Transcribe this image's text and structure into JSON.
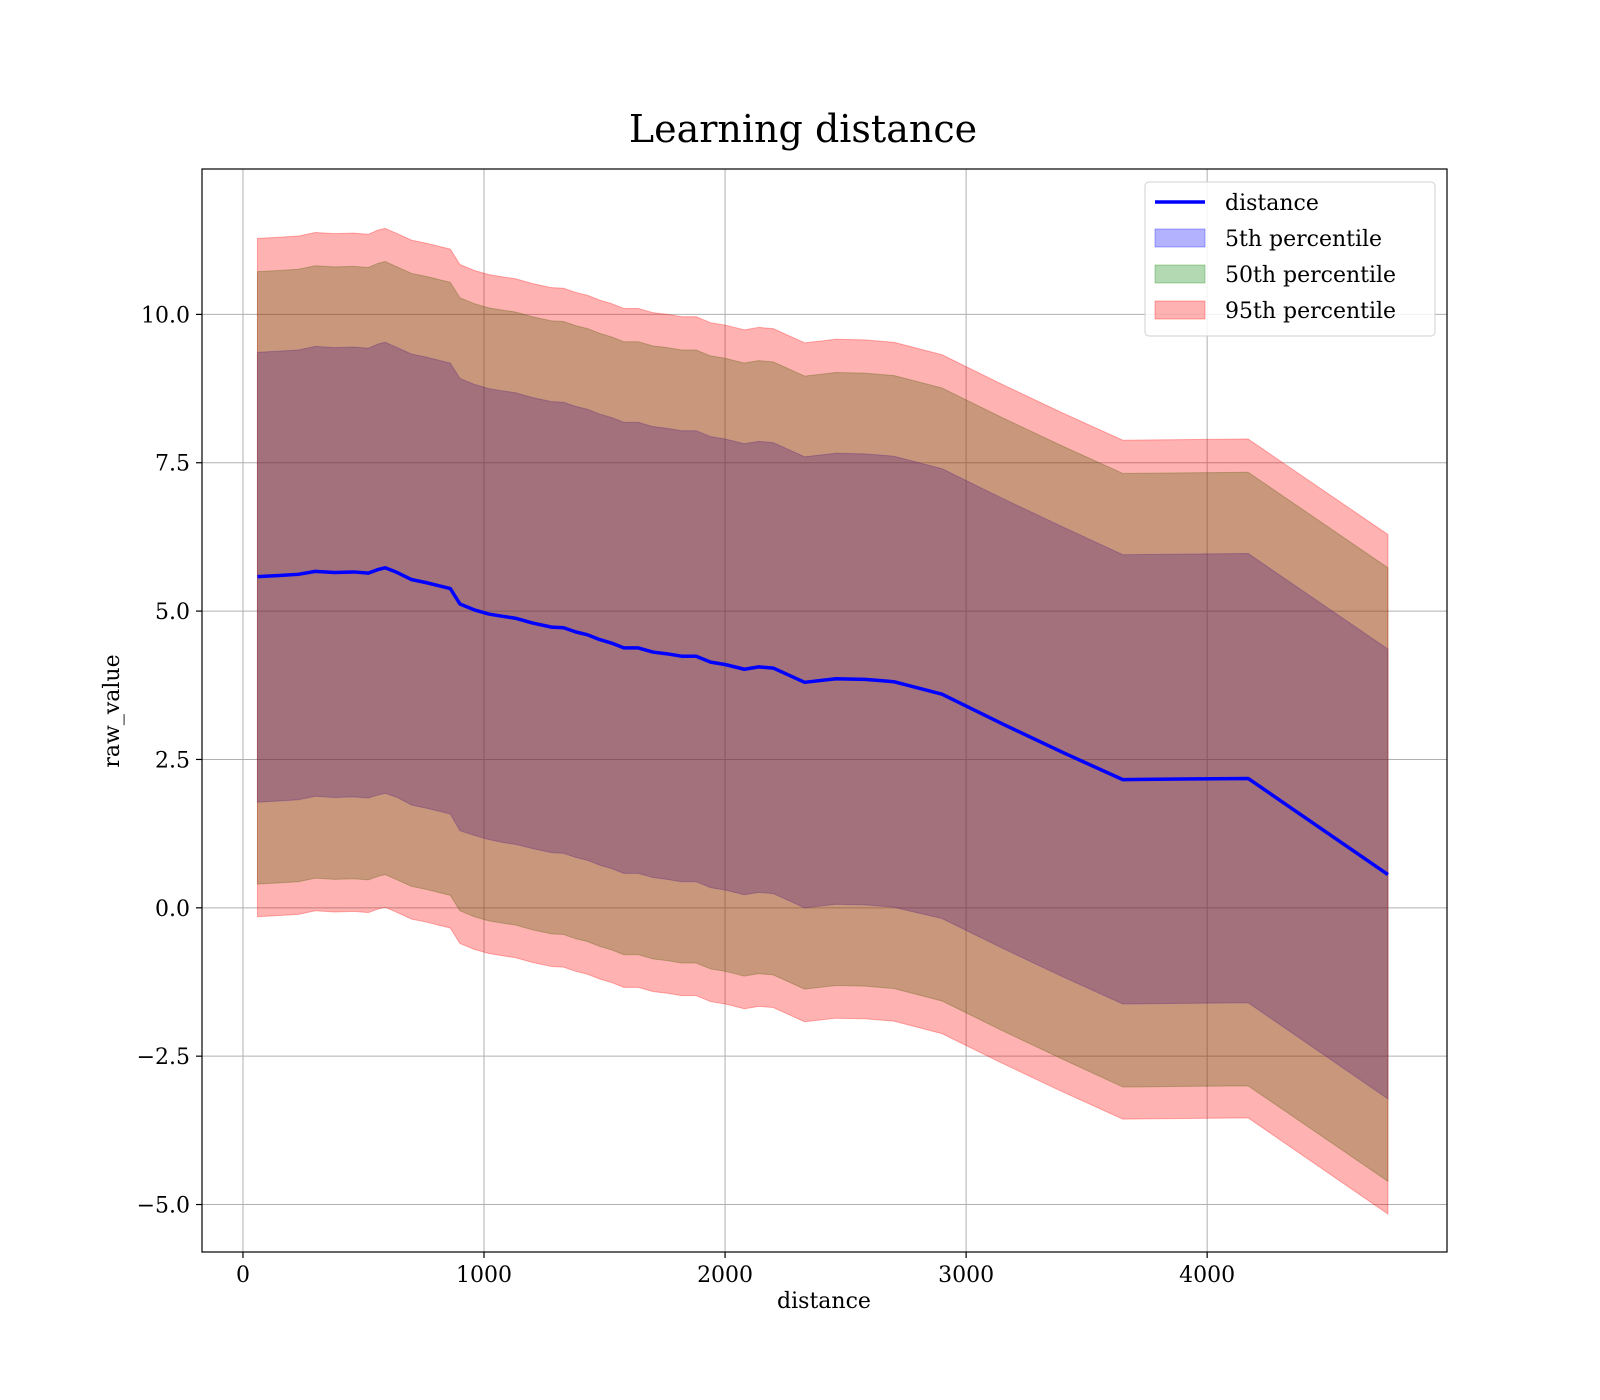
{
  "chart_data": {
    "type": "area",
    "title": "Learning distance",
    "xlabel": "distance",
    "ylabel": "raw_value",
    "xlim": [
      -170,
      4995
    ],
    "ylim": [
      -5.8,
      12.45
    ],
    "xticks": [
      0,
      1000,
      2000,
      3000,
      4000
    ],
    "xtick_labels": [
      "0",
      "1000",
      "2000",
      "3000",
      "4000"
    ],
    "yticks": [
      -5.0,
      -2.5,
      0.0,
      2.5,
      5.0,
      7.5,
      10.0
    ],
    "ytick_labels": [
      "−5.0",
      "−2.5",
      "0.0",
      "2.5",
      "5.0",
      "7.5",
      "10.0"
    ],
    "grid": true,
    "legend_position": "top-right",
    "x": [
      60,
      150,
      230,
      300,
      380,
      460,
      520,
      560,
      590,
      640,
      700,
      760,
      820,
      860,
      900,
      960,
      1020,
      1080,
      1130,
      1200,
      1280,
      1330,
      1380,
      1430,
      1480,
      1530,
      1580,
      1640,
      1700,
      1760,
      1820,
      1880,
      1940,
      2000,
      2040,
      2080,
      2140,
      2200,
      2330,
      2460,
      2580,
      2700,
      2900,
      3150,
      3400,
      3650,
      3900,
      4170,
      4750
    ],
    "series": [
      {
        "name": "distance",
        "kind": "line",
        "color": "#0000ff",
        "values": [
          5.58,
          5.6,
          5.62,
          5.67,
          5.65,
          5.66,
          5.64,
          5.7,
          5.73,
          5.65,
          5.53,
          5.48,
          5.42,
          5.38,
          5.12,
          5.02,
          4.95,
          4.91,
          4.88,
          4.8,
          4.73,
          4.72,
          4.65,
          4.6,
          4.52,
          4.46,
          4.38,
          4.38,
          4.31,
          4.28,
          4.24,
          4.24,
          4.14,
          4.1,
          4.06,
          4.02,
          4.06,
          4.04,
          3.8,
          3.86,
          3.85,
          3.81,
          3.6,
          3.1,
          2.62,
          2.16,
          2.17,
          2.18,
          0.56
        ]
      },
      {
        "name": "5th percentile",
        "kind": "band",
        "color": "#0000ff",
        "lower": [
          1.78,
          1.8,
          1.82,
          1.88,
          1.86,
          1.87,
          1.85,
          1.9,
          1.93,
          1.86,
          1.73,
          1.68,
          1.62,
          1.58,
          1.3,
          1.22,
          1.15,
          1.1,
          1.07,
          1.0,
          0.93,
          0.92,
          0.85,
          0.8,
          0.72,
          0.66,
          0.58,
          0.58,
          0.51,
          0.48,
          0.44,
          0.44,
          0.34,
          0.3,
          0.26,
          0.22,
          0.26,
          0.24,
          0.0,
          0.06,
          0.05,
          0.01,
          -0.18,
          -0.68,
          -1.16,
          -1.62,
          -1.61,
          -1.6,
          -3.22
        ],
        "upper": [
          9.36,
          9.38,
          9.4,
          9.46,
          9.44,
          9.45,
          9.43,
          9.5,
          9.53,
          9.44,
          9.33,
          9.28,
          9.22,
          9.18,
          8.92,
          8.82,
          8.75,
          8.71,
          8.68,
          8.6,
          8.53,
          8.52,
          8.45,
          8.4,
          8.32,
          8.26,
          8.18,
          8.18,
          8.11,
          8.08,
          8.04,
          8.04,
          7.94,
          7.9,
          7.86,
          7.82,
          7.86,
          7.84,
          7.6,
          7.66,
          7.65,
          7.61,
          7.4,
          6.9,
          6.42,
          5.95,
          5.96,
          5.97,
          4.36
        ]
      },
      {
        "name": "50th percentile",
        "kind": "band",
        "color": "#008000",
        "lower": [
          0.4,
          0.42,
          0.44,
          0.5,
          0.48,
          0.49,
          0.47,
          0.53,
          0.56,
          0.47,
          0.36,
          0.31,
          0.25,
          0.21,
          -0.05,
          -0.15,
          -0.22,
          -0.26,
          -0.29,
          -0.37,
          -0.44,
          -0.45,
          -0.52,
          -0.57,
          -0.65,
          -0.71,
          -0.79,
          -0.79,
          -0.86,
          -0.89,
          -0.93,
          -0.93,
          -1.03,
          -1.07,
          -1.11,
          -1.15,
          -1.11,
          -1.13,
          -1.37,
          -1.31,
          -1.32,
          -1.36,
          -1.57,
          -2.07,
          -2.55,
          -3.02,
          -3.01,
          -3.0,
          -4.61
        ],
        "upper": [
          10.72,
          10.74,
          10.76,
          10.82,
          10.8,
          10.81,
          10.79,
          10.86,
          10.89,
          10.8,
          10.69,
          10.64,
          10.58,
          10.54,
          10.28,
          10.18,
          10.11,
          10.07,
          10.04,
          9.96,
          9.89,
          9.88,
          9.81,
          9.76,
          9.68,
          9.62,
          9.54,
          9.54,
          9.47,
          9.44,
          9.4,
          9.4,
          9.3,
          9.26,
          9.22,
          9.18,
          9.22,
          9.2,
          8.96,
          9.02,
          9.01,
          8.97,
          8.76,
          8.26,
          7.78,
          7.32,
          7.33,
          7.34,
          5.73
        ]
      },
      {
        "name": "95th percentile",
        "kind": "band",
        "color": "#ff0000",
        "lower": [
          -0.15,
          -0.13,
          -0.11,
          -0.05,
          -0.07,
          -0.06,
          -0.08,
          -0.02,
          0.01,
          -0.08,
          -0.19,
          -0.24,
          -0.3,
          -0.34,
          -0.6,
          -0.7,
          -0.77,
          -0.81,
          -0.84,
          -0.92,
          -0.99,
          -1.0,
          -1.07,
          -1.12,
          -1.2,
          -1.26,
          -1.34,
          -1.34,
          -1.41,
          -1.44,
          -1.48,
          -1.48,
          -1.58,
          -1.62,
          -1.66,
          -1.7,
          -1.66,
          -1.68,
          -1.92,
          -1.86,
          -1.87,
          -1.91,
          -2.12,
          -2.62,
          -3.1,
          -3.56,
          -3.55,
          -3.54,
          -5.16
        ],
        "upper": [
          11.28,
          11.3,
          11.32,
          11.38,
          11.36,
          11.37,
          11.35,
          11.42,
          11.45,
          11.36,
          11.25,
          11.2,
          11.14,
          11.1,
          10.84,
          10.74,
          10.67,
          10.63,
          10.6,
          10.52,
          10.45,
          10.44,
          10.37,
          10.32,
          10.24,
          10.18,
          10.1,
          10.1,
          10.03,
          10.0,
          9.96,
          9.96,
          9.86,
          9.82,
          9.78,
          9.74,
          9.78,
          9.76,
          9.52,
          9.58,
          9.57,
          9.53,
          9.32,
          8.82,
          8.34,
          7.88,
          7.89,
          7.9,
          6.29
        ]
      }
    ]
  }
}
